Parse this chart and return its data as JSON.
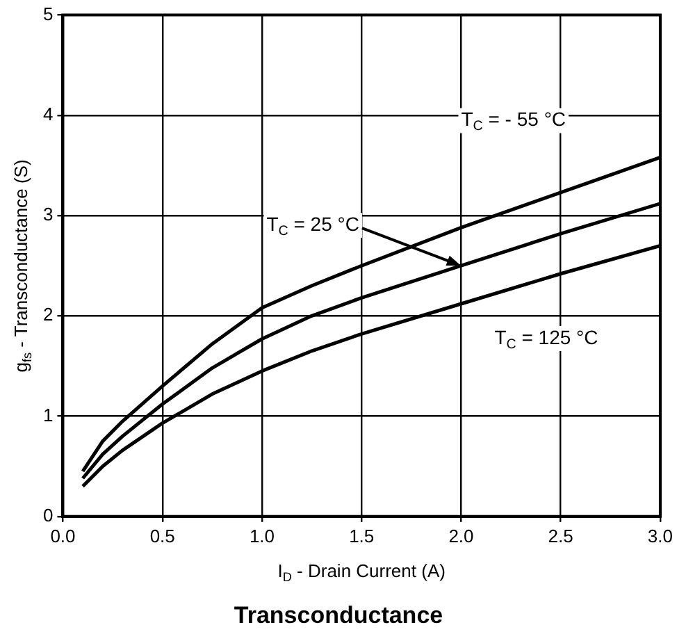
{
  "chart_data": {
    "type": "line",
    "title": "Transconductance",
    "xlabel": "I$_{D}$ - Drain Current (A)",
    "ylabel": "g$_{fs}$ - Transconductance (S)",
    "x": [
      0.1,
      0.2,
      0.3,
      0.5,
      0.75,
      1.0,
      1.25,
      1.5,
      2.0,
      2.5,
      3.0
    ],
    "series": [
      {
        "color": "#000000",
        "values": [
          0.45,
          0.75,
          0.95,
          1.3,
          1.72,
          2.08,
          2.3,
          2.5,
          2.88,
          3.23,
          3.58
        ]
      },
      {
        "color": "#000000",
        "values": [
          0.38,
          0.62,
          0.8,
          1.12,
          1.48,
          1.77,
          2.0,
          2.18,
          2.5,
          2.82,
          3.12
        ]
      },
      {
        "color": "#000000",
        "values": [
          0.3,
          0.5,
          0.66,
          0.93,
          1.22,
          1.45,
          1.65,
          1.82,
          2.12,
          2.42,
          2.7
        ]
      }
    ],
    "annotations": [
      "T$_{C}$ = - 55 °C",
      {
        "text": "T$_{C}$ = 25 °C",
        "x": 2.0,
        "y": 2.5
      },
      "T$_{C}$ = 125 °C"
    ],
    "xlim": [
      0,
      3
    ],
    "ylim": [
      0,
      5
    ],
    "xticks": [
      {
        "value": 0,
        "label": "0.0"
      },
      {
        "value": 0.5,
        "label": "0.5"
      },
      {
        "value": 1,
        "label": "1.0"
      },
      {
        "value": 1.5,
        "label": "1.5"
      },
      {
        "value": 2,
        "label": "2.0"
      },
      {
        "value": 2.5,
        "label": "2.5"
      },
      {
        "value": 3,
        "label": "3.0"
      }
    ],
    "yticks": [
      0,
      1,
      2,
      3,
      4,
      5
    ],
    "grid": true,
    "legend": false,
    "marker": "none",
    "line_style": "solid"
  }
}
